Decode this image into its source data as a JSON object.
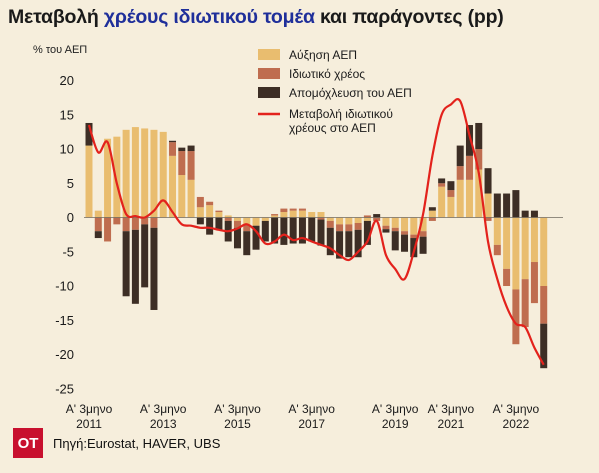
{
  "header": {
    "title_part1": "Μεταβολή ",
    "title_highlight": "χρέους ιδιωτικού τομέα",
    "title_part2": " και παράγοντες (pp)",
    "unit": "% του ΑΕΠ"
  },
  "footer": {
    "logo": "OT",
    "source": "Πηγή:Eurostat, HAVER, UBS"
  },
  "colors": {
    "growth": "#e9bd6f",
    "private_debt": "#bf6d4f",
    "deleveraging": "#3d2e25",
    "line": "#e3221c"
  },
  "chart_data": {
    "type": "bar",
    "title": "Μεταβολή χρέους ιδιωτικού τομέα και παράγοντες (pp)",
    "ylabel": "% του ΑΕΠ",
    "ylim": [
      -25,
      20
    ],
    "yticks": [
      20,
      15,
      10,
      5,
      0,
      -5,
      -10,
      -15,
      -20,
      -25
    ],
    "grid": false,
    "legend": "top-center",
    "x_tick_labels": [
      {
        "q": 0,
        "line1": "Α' 3μηνο",
        "line2": "2011"
      },
      {
        "q": 8,
        "line1": "Α' 3μηνο",
        "line2": "2013"
      },
      {
        "q": 16,
        "line1": "Α' 3μηνο",
        "line2": "2015"
      },
      {
        "q": 24,
        "line1": "Α' 3μηνο",
        "line2": "2017"
      },
      {
        "q": 33,
        "line1": "Α' 3μηνο",
        "line2": "2019"
      },
      {
        "q": 39,
        "line1": "Α' 3μηνο",
        "line2": "2021"
      },
      {
        "q": 46,
        "line1": "Α' 3μηνο",
        "line2": "2022"
      }
    ],
    "series": [
      {
        "name": "Αύξηση ΑΕΠ",
        "kind": "stacked-bar",
        "values": [
          10.5,
          1.0,
          11.5,
          11.8,
          12.8,
          13.2,
          13.0,
          12.8,
          12.5,
          9.0,
          6.2,
          5.5,
          1.5,
          1.8,
          0.8,
          0.3,
          -0.5,
          -1.0,
          -1.2,
          -0.5,
          0.3,
          0.8,
          1.0,
          1.0,
          0.8,
          0.8,
          -0.5,
          -1.0,
          -1.0,
          -0.8,
          -0.5,
          0.0,
          -1.2,
          -1.5,
          -2.0,
          -2.5,
          -2.0,
          1.0,
          4.5,
          3.0,
          5.5,
          5.5,
          7.0,
          3.5,
          -4.0,
          -7.5,
          -10.5,
          -9.0,
          -6.5,
          -10.0
        ]
      },
      {
        "name": "Ιδιωτικό χρέος",
        "kind": "stacked-bar",
        "values": [
          0.0,
          -2.0,
          -3.5,
          -1.0,
          -2.0,
          -1.8,
          -1.0,
          -1.5,
          0.0,
          2.0,
          3.5,
          4.2,
          1.5,
          0.5,
          0.2,
          -0.5,
          -1.0,
          -1.0,
          0.0,
          0.0,
          0.2,
          0.5,
          0.3,
          0.3,
          0.0,
          -0.3,
          -1.0,
          -1.0,
          -1.0,
          -1.0,
          0.3,
          -0.5,
          -0.5,
          -0.5,
          -0.5,
          -0.5,
          -0.8,
          -0.5,
          0.5,
          1.0,
          2.0,
          3.5,
          3.0,
          -0.5,
          -1.5,
          -2.5,
          -8.0,
          -7.0,
          -6.0,
          -5.5
        ]
      },
      {
        "name": "Απομόχλευση του ΑΕΠ",
        "kind": "stacked-bar",
        "values": [
          3.3,
          -1.0,
          0.0,
          0.0,
          -9.5,
          -10.8,
          -9.2,
          -12.0,
          0.0,
          0.2,
          0.5,
          0.8,
          -1.0,
          -2.5,
          -1.8,
          -3.0,
          -3.0,
          -3.5,
          -3.5,
          -3.0,
          -3.8,
          -4.0,
          -3.8,
          -3.8,
          -3.5,
          -3.8,
          -4.0,
          -4.0,
          -3.8,
          -4.0,
          -3.5,
          0.5,
          -0.5,
          -2.8,
          -2.5,
          -2.8,
          -2.5,
          0.5,
          0.7,
          1.3,
          3.0,
          4.5,
          3.8,
          3.7,
          3.5,
          3.5,
          4.0,
          1.0,
          1.0,
          -6.5
        ]
      },
      {
        "name": "Μεταβολή ιδιωτικού χρέους στο ΑΕΠ",
        "kind": "line",
        "values": [
          13.5,
          9.5,
          11.0,
          5.0,
          0.5,
          0.2,
          0.0,
          1.0,
          2.5,
          0.8,
          -1.0,
          -1.2,
          -1.5,
          -1.5,
          -1.8,
          -2.0,
          -1.6,
          -1.0,
          -2.0,
          -3.8,
          -3.5,
          -2.5,
          -3.3,
          -3.0,
          -3.5,
          -4.0,
          -4.5,
          -5.5,
          -6.2,
          -5.0,
          -3.5,
          -0.5,
          -5.5,
          -7.5,
          -9.0,
          -5.0,
          0.5,
          9.0,
          15.0,
          16.5,
          17.0,
          12.0,
          6.5,
          -3.5,
          -9.0,
          -13.0,
          -15.5,
          -16.0,
          -19.0,
          -21.5
        ]
      }
    ]
  }
}
